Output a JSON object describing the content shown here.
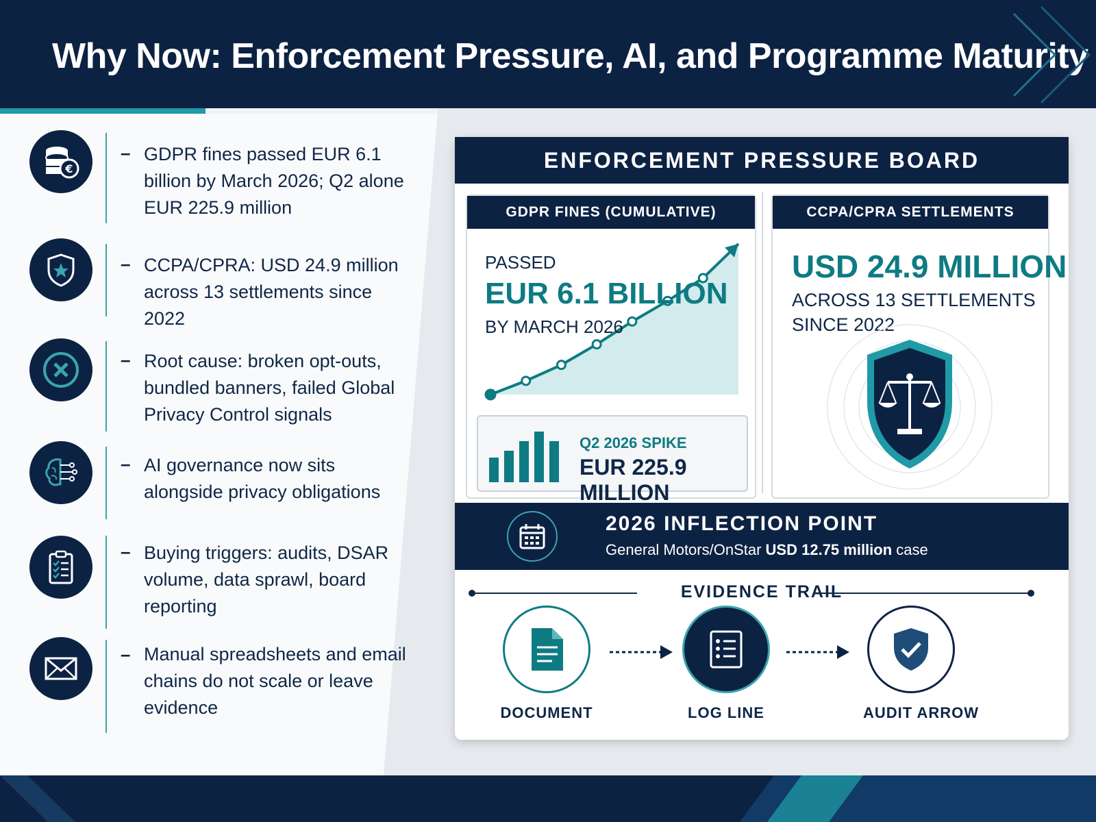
{
  "header": {
    "title": "Why Now: Enforcement Pressure, AI, and Programme Maturity"
  },
  "bullets": [
    {
      "icon": "coins-euro-icon",
      "text": "GDPR fines passed EUR 6.1 billion by March 2026; Q2 alone EUR 225.9 million"
    },
    {
      "icon": "shield-star-icon",
      "text": "CCPA/CPRA: USD 24.9 million across 13 settlements since 2022"
    },
    {
      "icon": "x-circle-icon",
      "text": "Root cause: broken opt-outs, bundled banners, failed Global Privacy Control signals"
    },
    {
      "icon": "ai-brain-icon",
      "text": "AI governance now sits alongside privacy obligations"
    },
    {
      "icon": "clipboard-checklist-icon",
      "text": "Buying triggers: audits, DSAR volume, data sprawl, board reporting"
    },
    {
      "icon": "envelope-icon",
      "text": "Manual spreadsheets and email chains do not scale or leave evidence"
    }
  ],
  "board": {
    "title": "ENFORCEMENT PRESSURE BOARD",
    "gdpr": {
      "header": "GDPR FINES (CUMULATIVE)",
      "passed": "PASSED",
      "amount": "EUR 6.1 BILLION",
      "by": "BY MARCH 2026",
      "spike_label": "Q2 2026 SPIKE",
      "spike_value": "EUR 225.9 MILLION"
    },
    "ccpa": {
      "header": "CCPA/CPRA SETTLEMENTS",
      "amount": "USD 24.9 MILLION",
      "sub_line1": "ACROSS 13 SETTLEMENTS",
      "sub_line2": "SINCE 2022"
    },
    "inflection": {
      "title": "2026 INFLECTION POINT",
      "sub_prefix": "General Motors/OnStar ",
      "sub_bold": "USD 12.75 million",
      "sub_suffix": " case"
    },
    "trail": {
      "title": "EVIDENCE TRAIL",
      "steps": [
        "DOCUMENT",
        "LOG LINE",
        "AUDIT ARROW"
      ]
    }
  },
  "colors": {
    "navy": "#0c2243",
    "teal": "#0e7b83",
    "accent": "#3aa5ad"
  },
  "gdpr_trend_points": [
    1,
    1.6,
    2.3,
    3.2,
    4.2,
    5.1,
    6.1,
    7.6
  ]
}
